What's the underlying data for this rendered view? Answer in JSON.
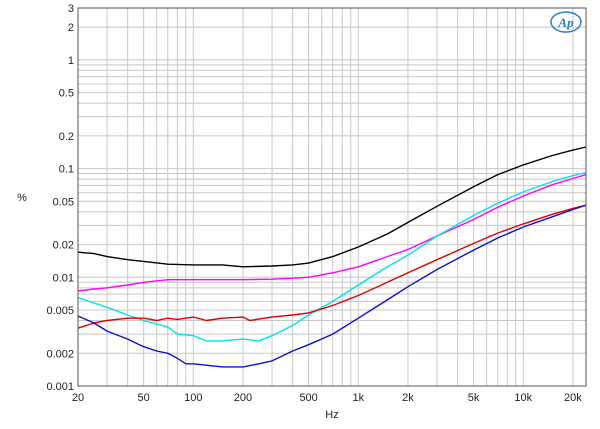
{
  "chart_data": {
    "type": "line",
    "title": "",
    "xlabel": "Hz",
    "ylabel": "%",
    "xscale": "log",
    "yscale": "log",
    "xlim": [
      20,
      24000
    ],
    "ylim": [
      0.001,
      3
    ],
    "grid": true,
    "x_ticks": [
      {
        "v": 20,
        "label": "20"
      },
      {
        "v": 50,
        "label": "50"
      },
      {
        "v": 100,
        "label": "100"
      },
      {
        "v": 200,
        "label": "200"
      },
      {
        "v": 500,
        "label": "500"
      },
      {
        "v": 1000,
        "label": "1k"
      },
      {
        "v": 2000,
        "label": "2k"
      },
      {
        "v": 5000,
        "label": "5k"
      },
      {
        "v": 10000,
        "label": "10k"
      },
      {
        "v": 20000,
        "label": "20k"
      }
    ],
    "y_ticks": [
      {
        "v": 3,
        "label": "3"
      },
      {
        "v": 2,
        "label": "2"
      },
      {
        "v": 1,
        "label": "1"
      },
      {
        "v": 0.5,
        "label": "0.5"
      },
      {
        "v": 0.2,
        "label": "0.2"
      },
      {
        "v": 0.1,
        "label": "0.1"
      },
      {
        "v": 0.05,
        "label": "0.05"
      },
      {
        "v": 0.02,
        "label": "0.02"
      },
      {
        "v": 0.01,
        "label": "0.01"
      },
      {
        "v": 0.005,
        "label": "0.005"
      },
      {
        "v": 0.002,
        "label": "0.002"
      },
      {
        "v": 0.001,
        "label": "0.001"
      }
    ],
    "series": [
      {
        "color": "#000000",
        "points": [
          [
            20,
            0.017
          ],
          [
            25,
            0.0165
          ],
          [
            30,
            0.0155
          ],
          [
            40,
            0.0145
          ],
          [
            50,
            0.014
          ],
          [
            70,
            0.0132
          ],
          [
            100,
            0.013
          ],
          [
            150,
            0.013
          ],
          [
            200,
            0.0125
          ],
          [
            300,
            0.0127
          ],
          [
            400,
            0.013
          ],
          [
            500,
            0.0135
          ],
          [
            700,
            0.0155
          ],
          [
            1000,
            0.019
          ],
          [
            1500,
            0.025
          ],
          [
            2000,
            0.032
          ],
          [
            3000,
            0.045
          ],
          [
            5000,
            0.068
          ],
          [
            7000,
            0.088
          ],
          [
            10000,
            0.108
          ],
          [
            15000,
            0.132
          ],
          [
            20000,
            0.148
          ],
          [
            24000,
            0.158
          ]
        ]
      },
      {
        "color": "#ff00ff",
        "points": [
          [
            20,
            0.0075
          ],
          [
            25,
            0.0078
          ],
          [
            30,
            0.008
          ],
          [
            40,
            0.0085
          ],
          [
            50,
            0.009
          ],
          [
            70,
            0.0095
          ],
          [
            100,
            0.0095
          ],
          [
            150,
            0.0095
          ],
          [
            200,
            0.0095
          ],
          [
            300,
            0.0096
          ],
          [
            400,
            0.0098
          ],
          [
            500,
            0.01
          ],
          [
            700,
            0.011
          ],
          [
            1000,
            0.0125
          ],
          [
            1500,
            0.0155
          ],
          [
            2000,
            0.018
          ],
          [
            3000,
            0.024
          ],
          [
            5000,
            0.034
          ],
          [
            7000,
            0.044
          ],
          [
            10000,
            0.056
          ],
          [
            15000,
            0.071
          ],
          [
            20000,
            0.081
          ],
          [
            24000,
            0.088
          ]
        ]
      },
      {
        "color": "#00e5e5",
        "points": [
          [
            20,
            0.0065
          ],
          [
            25,
            0.0058
          ],
          [
            30,
            0.0053
          ],
          [
            40,
            0.0045
          ],
          [
            50,
            0.004
          ],
          [
            70,
            0.0035
          ],
          [
            80,
            0.003
          ],
          [
            100,
            0.0029
          ],
          [
            120,
            0.0026
          ],
          [
            150,
            0.0026
          ],
          [
            200,
            0.0027
          ],
          [
            250,
            0.0026
          ],
          [
            300,
            0.0029
          ],
          [
            400,
            0.0036
          ],
          [
            500,
            0.0045
          ],
          [
            700,
            0.006
          ],
          [
            1000,
            0.0085
          ],
          [
            1500,
            0.0125
          ],
          [
            2000,
            0.016
          ],
          [
            3000,
            0.024
          ],
          [
            5000,
            0.037
          ],
          [
            7000,
            0.048
          ],
          [
            10000,
            0.061
          ],
          [
            15000,
            0.076
          ],
          [
            20000,
            0.086
          ],
          [
            24000,
            0.092
          ]
        ]
      },
      {
        "color": "#e00000",
        "points": [
          [
            20,
            0.0034
          ],
          [
            25,
            0.0038
          ],
          [
            30,
            0.004
          ],
          [
            40,
            0.0042
          ],
          [
            50,
            0.0042
          ],
          [
            60,
            0.004
          ],
          [
            70,
            0.0042
          ],
          [
            80,
            0.0041
          ],
          [
            100,
            0.0043
          ],
          [
            120,
            0.004
          ],
          [
            150,
            0.0042
          ],
          [
            200,
            0.0043
          ],
          [
            220,
            0.004
          ],
          [
            300,
            0.0043
          ],
          [
            400,
            0.0045
          ],
          [
            500,
            0.0047
          ],
          [
            700,
            0.0055
          ],
          [
            1000,
            0.0068
          ],
          [
            1500,
            0.009
          ],
          [
            2000,
            0.011
          ],
          [
            3000,
            0.0145
          ],
          [
            5000,
            0.0205
          ],
          [
            7000,
            0.0255
          ],
          [
            10000,
            0.031
          ],
          [
            15000,
            0.038
          ],
          [
            20000,
            0.043
          ],
          [
            24000,
            0.046
          ]
        ]
      },
      {
        "color": "#1010d0",
        "points": [
          [
            20,
            0.0044
          ],
          [
            25,
            0.0038
          ],
          [
            30,
            0.0032
          ],
          [
            40,
            0.0027
          ],
          [
            50,
            0.0023
          ],
          [
            60,
            0.0021
          ],
          [
            70,
            0.002
          ],
          [
            80,
            0.0018
          ],
          [
            90,
            0.0016
          ],
          [
            100,
            0.0016
          ],
          [
            150,
            0.0015
          ],
          [
            200,
            0.0015
          ],
          [
            250,
            0.0016
          ],
          [
            300,
            0.0017
          ],
          [
            400,
            0.0021
          ],
          [
            500,
            0.0024
          ],
          [
            700,
            0.003
          ],
          [
            1000,
            0.0042
          ],
          [
            1500,
            0.0062
          ],
          [
            2000,
            0.0082
          ],
          [
            3000,
            0.0118
          ],
          [
            5000,
            0.0178
          ],
          [
            7000,
            0.023
          ],
          [
            10000,
            0.029
          ],
          [
            15000,
            0.036
          ],
          [
            20000,
            0.042
          ],
          [
            24000,
            0.046
          ]
        ]
      }
    ]
  },
  "logo": {
    "text": "Ap",
    "color": "#2a7fd0"
  }
}
